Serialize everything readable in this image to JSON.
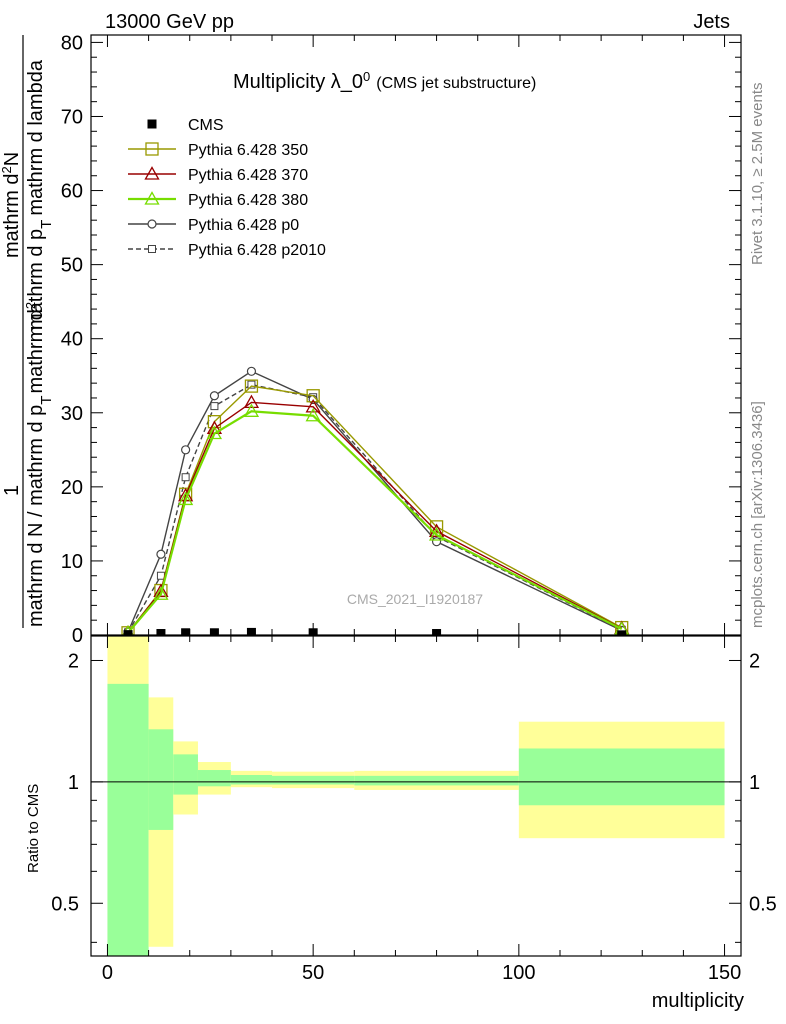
{
  "header": {
    "left": "13000 GeV pp",
    "right": "Jets"
  },
  "side_text": {
    "rivet": "Rivet 3.1.10, ≥ 2.5M events",
    "mcplots": "mcplots.cern.ch [arXiv:1306.3436]"
  },
  "watermark": "CMS_2021_I1920187",
  "colors": {
    "cms": "#000000",
    "p350": "#999900",
    "p370": "#990000",
    "p380": "#77dd00",
    "p0": "#444444",
    "p2010": "#444444",
    "band_inner": "#99ff99",
    "band_outer": "#ffff99"
  },
  "chart_data": {
    "type": "line",
    "title": "Multiplicity λ_0",
    "title_sup": "0",
    "title_suffix": "(CMS jet substructure)",
    "ylabel_main": "1 / mathrm d N / mathrm d p_T mathrm d^2N / mathrm d p_T mathrm d lambda",
    "ylabel_parts": {
      "numerator": "1",
      "denominator": "mathrm d N / mathrm d p",
      "sub_T1": "T",
      "frac_num": "mathrm d",
      "frac_sup": "2",
      "frac_num2": "N",
      "frac_den": "mathrm d p",
      "sub_T2": "T",
      "frac_den2": "mathrm d lambda"
    },
    "xlabel": "multiplicity",
    "ylabel_ratio": "Ratio to CMS",
    "xlim": [
      -4,
      154
    ],
    "ylim": [
      0,
      81
    ],
    "xticks": [
      0,
      50,
      100,
      150
    ],
    "yticks": [
      0,
      10,
      20,
      30,
      40,
      50,
      60,
      70,
      80
    ],
    "ratio_ylim": [
      0.37,
      2.3
    ],
    "ratio_yticks": [
      0.5,
      1,
      2
    ],
    "ratio_ytick_labels": [
      "0.5",
      "1",
      "2"
    ],
    "bins": [
      [
        0,
        10
      ],
      [
        10,
        16
      ],
      [
        16,
        22
      ],
      [
        22,
        30
      ],
      [
        30,
        40
      ],
      [
        40,
        60
      ],
      [
        60,
        100
      ],
      [
        100,
        150
      ]
    ],
    "x": [
      5,
      13,
      19,
      26,
      35,
      50,
      80,
      125
    ],
    "series": [
      {
        "name": "CMS",
        "key": "cms",
        "marker": "square-filled",
        "values": [
          0.05,
          0.2,
          0.3,
          0.3,
          0.35,
          0.3,
          0.2,
          0.02
        ]
      },
      {
        "name": "Pythia 6.428 350",
        "key": "p350",
        "marker": "square-open",
        "values": [
          0.3,
          6.0,
          19.0,
          28.8,
          33.6,
          32.3,
          14.6,
          1.0
        ]
      },
      {
        "name": "Pythia 6.428 370",
        "key": "p370",
        "marker": "triangle-open",
        "values": [
          0.3,
          5.9,
          18.8,
          27.9,
          31.4,
          30.8,
          14.0,
          0.9
        ]
      },
      {
        "name": "Pythia 6.428 380",
        "key": "p380",
        "marker": "triangle-open",
        "values": [
          0.3,
          5.5,
          18.3,
          27.2,
          30.2,
          29.6,
          13.5,
          0.8
        ]
      },
      {
        "name": "Pythia 6.428 p0",
        "key": "p0",
        "marker": "circle-open",
        "values": [
          0.4,
          10.9,
          25.0,
          32.3,
          35.6,
          31.8,
          12.6,
          0.6
        ]
      },
      {
        "name": "Pythia 6.428 p2010",
        "key": "p2010",
        "marker": "square-small-open",
        "dashed": true,
        "values": [
          0.35,
          8.0,
          21.3,
          30.9,
          33.8,
          32.1,
          13.3,
          0.7
        ]
      }
    ],
    "ratio_band": {
      "inner_lo": [
        0.37,
        0.76,
        0.93,
        0.975,
        0.985,
        0.985,
        0.98,
        0.875
      ],
      "inner_hi": [
        1.75,
        1.35,
        1.17,
        1.07,
        1.04,
        1.035,
        1.035,
        1.21
      ],
      "outer_lo": [
        0.37,
        0.39,
        0.83,
        0.93,
        0.97,
        0.965,
        0.955,
        0.725
      ],
      "outer_hi": [
        2.3,
        1.62,
        1.26,
        1.12,
        1.065,
        1.06,
        1.065,
        1.41
      ]
    },
    "legend_position": "top-left",
    "grid": false
  }
}
